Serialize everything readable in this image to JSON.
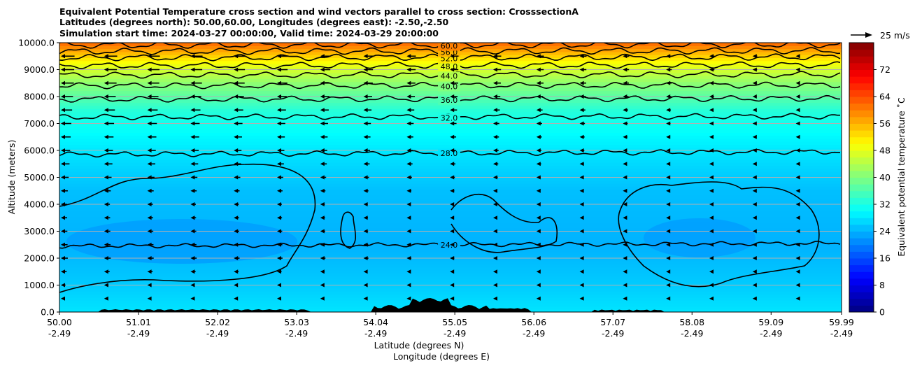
{
  "chart_data": {
    "type": "heatmap",
    "title_lines": [
      "Equivalent Potential Temperature cross section and wind vectors parallel to cross section: CrosssectionA",
      "Latitudes (degrees north): 50.00,60.00, Longitudes (degrees east): -2.50,-2.50",
      "Simulation start time: 2024-03-27 00:00:00, Valid time: 2024-03-29 20:00:00"
    ],
    "ylabel": "Altitude (meters)",
    "xlabel_lines": [
      "Latitude (degrees N)",
      "Longitude (degrees E)"
    ],
    "ylim": [
      0,
      10000
    ],
    "xlim": [
      50.0,
      59.99
    ],
    "y_ticks": [
      0,
      1000,
      2000,
      3000,
      4000,
      5000,
      6000,
      7000,
      8000,
      9000,
      10000
    ],
    "y_tick_labels": [
      "0.0",
      "1000.0",
      "2000.0",
      "3000.0",
      "4000.0",
      "5000.0",
      "6000.0",
      "7000.0",
      "8000.0",
      "9000.0",
      "10000.0"
    ],
    "x_ticks": [
      {
        "lat": "50.00",
        "lon": "-2.49"
      },
      {
        "lat": "51.01",
        "lon": "-2.49"
      },
      {
        "lat": "52.02",
        "lon": "-2.49"
      },
      {
        "lat": "53.03",
        "lon": "-2.49"
      },
      {
        "lat": "54.04",
        "lon": "-2.49"
      },
      {
        "lat": "55.05",
        "lon": "-2.49"
      },
      {
        "lat": "56.06",
        "lon": "-2.49"
      },
      {
        "lat": "57.07",
        "lon": "-2.49"
      },
      {
        "lat": "58.08",
        "lon": "-2.49"
      },
      {
        "lat": "59.09",
        "lon": "-2.49"
      },
      {
        "lat": "59.99",
        "lon": "-2.49"
      }
    ],
    "grid": "horizontal",
    "colorbar": {
      "label": "Equivalent potential temperature ˚C",
      "range": [
        0,
        80
      ],
      "ticks": [
        "0",
        "8",
        "16",
        "24",
        "32",
        "40",
        "48",
        "56",
        "64",
        "72"
      ],
      "colormap": "jet"
    },
    "temperature_profile": [
      {
        "altitude": 0,
        "value": 28
      },
      {
        "altitude": 1000,
        "value": 26
      },
      {
        "altitude": 2500,
        "value": 24
      },
      {
        "altitude": 4500,
        "value": 25
      },
      {
        "altitude": 5500,
        "value": 27
      },
      {
        "altitude": 6500,
        "value": 29.5
      },
      {
        "altitude": 7500,
        "value": 33
      },
      {
        "altitude": 8500,
        "value": 41
      },
      {
        "altitude": 9300,
        "value": 50
      },
      {
        "altitude": 10000,
        "value": 62
      }
    ],
    "contours": [
      {
        "value": 24.0,
        "label": "24.0"
      },
      {
        "value": 28.0,
        "label": "28.0"
      },
      {
        "value": 32.0,
        "label": "32.0"
      },
      {
        "value": 36.0,
        "label": "36.0"
      },
      {
        "value": 40.0,
        "label": "40.0"
      },
      {
        "value": 44.0,
        "label": "44.0"
      },
      {
        "value": 48.0,
        "label": "48.0"
      },
      {
        "value": 52.0,
        "label": "52.0"
      },
      {
        "value": 56.0,
        "label": "56.0"
      },
      {
        "value": 60.0,
        "label": "60.0"
      }
    ],
    "wind_reference": {
      "label": "25 m/s",
      "speed": 25
    },
    "wind_profile": [
      {
        "altitude": 500,
        "speed": 4
      },
      {
        "altitude": 2000,
        "speed": 8
      },
      {
        "altitude": 4000,
        "speed": 7
      },
      {
        "altitude": 5500,
        "speed": 10
      },
      {
        "altitude": 7000,
        "speed": 12
      },
      {
        "altitude": 8500,
        "speed": 15
      },
      {
        "altitude": 9800,
        "speed": 16
      }
    ]
  }
}
